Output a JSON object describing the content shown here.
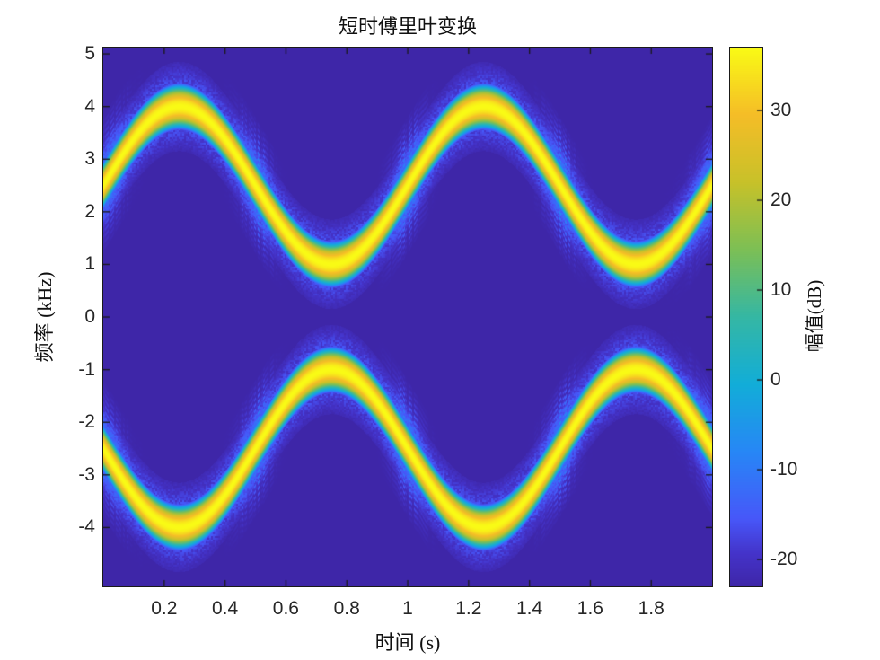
{
  "style": {
    "background": "#ffffff",
    "axes_color": "#1a1a1a",
    "tick_text_color": "#262626",
    "label_text_color": "#111111"
  },
  "chart_data": {
    "type": "heatmap",
    "title": "短时傅里叶变换",
    "xlabel": "时间 (s)",
    "ylabel": "频率 (kHz)",
    "colorbar_label": "幅值(dB)",
    "xlim_s": [
      0,
      2
    ],
    "ylim_khz": [
      -5.12,
      5.12
    ],
    "clim_db": [
      -23,
      37
    ],
    "xtick_values": [
      0.2,
      0.4,
      0.6,
      0.8,
      1,
      1.2,
      1.4,
      1.6,
      1.8
    ],
    "xtick_labels": [
      "0.2",
      "0.4",
      "0.6",
      "0.8",
      "1",
      "1.2",
      "1.4",
      "1.6",
      "1.8"
    ],
    "ytick_values": [
      5,
      4,
      3,
      2,
      1,
      0,
      -1,
      -2,
      -3,
      -4
    ],
    "ytick_labels": [
      "5",
      "4",
      "3",
      "2",
      "1",
      "0",
      "-1",
      "-2",
      "-3",
      "-4"
    ],
    "colorbar_tick_values": [
      30,
      20,
      10,
      0,
      -10,
      -20
    ],
    "colorbar_tick_labels": [
      "30",
      "20",
      "10",
      "0",
      "-10",
      "-20"
    ],
    "grid": false,
    "legend": null,
    "series": [
      {
        "name": "positive-frequency ridge",
        "model": "f(t) = 2.5 + 1.5*sin(2*pi*1*t) kHz",
        "peak_db": 37
      },
      {
        "name": "negative-frequency mirror ridge",
        "model": "f(t) = -(2.5 + 1.5*sin(2*pi*1*t)) kHz",
        "peak_db": 37
      }
    ],
    "signal_params": {
      "center_khz": 2.5,
      "deviation_khz": 1.5,
      "mod_rate_hz": 1,
      "background_db": -23,
      "ridge_peak_db": 37
    },
    "colormap": {
      "name": "parula",
      "stops": [
        [
          0.0,
          "#3e26a8"
        ],
        [
          0.06,
          "#4433c9"
        ],
        [
          0.125,
          "#4757f9"
        ],
        [
          0.25,
          "#2787f6"
        ],
        [
          0.375,
          "#12add8"
        ],
        [
          0.5,
          "#35b7a4"
        ],
        [
          0.625,
          "#7cbf55"
        ],
        [
          0.75,
          "#c8c129"
        ],
        [
          0.875,
          "#f5bd27"
        ],
        [
          1.0,
          "#f9fb15"
        ]
      ]
    }
  }
}
